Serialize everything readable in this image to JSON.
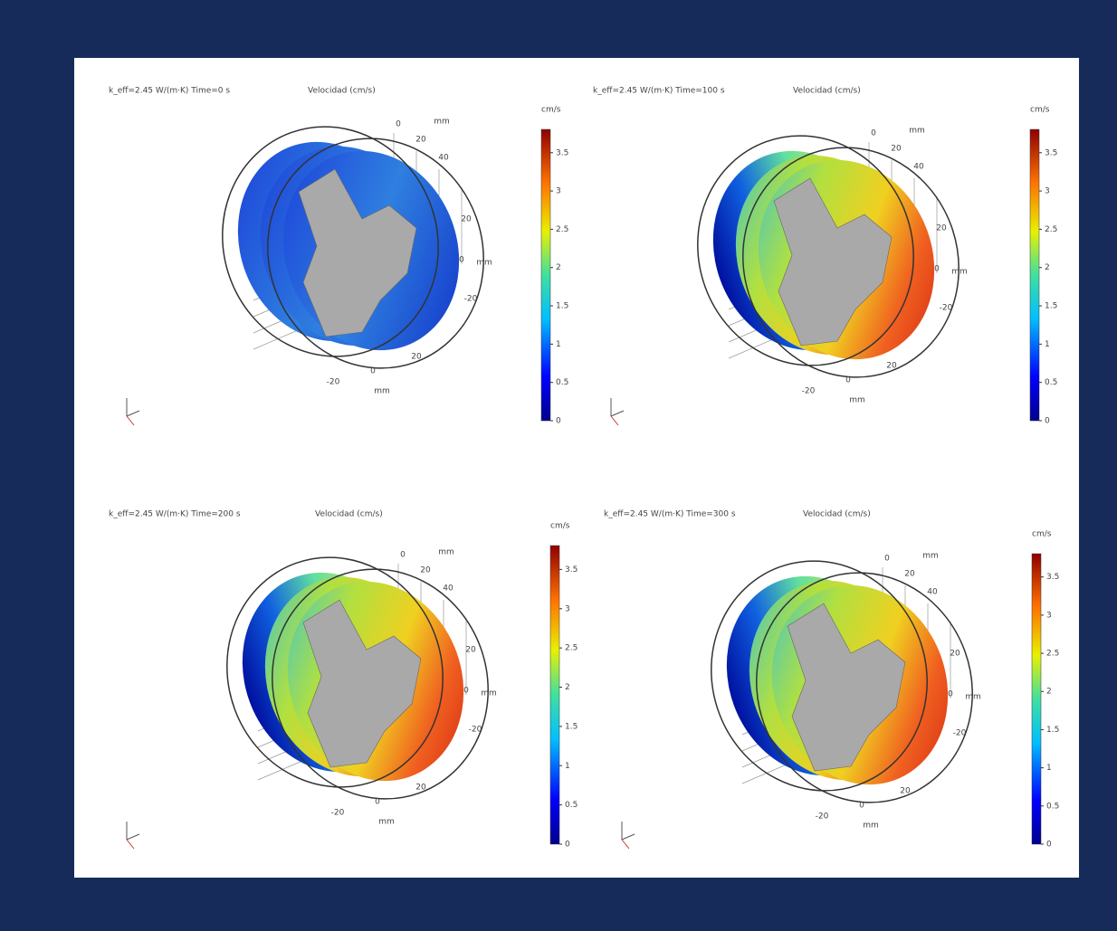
{
  "panels": [
    {
      "title": "k_eff=2.45 W/(m·K) Time=0 s",
      "quantity": "Velocidad (cm/s)",
      "unit": "cm/s",
      "colorbar_ticks": [
        0,
        0.5,
        1,
        1.5,
        2,
        2.5,
        3,
        3.5
      ],
      "axis_labels": [
        "0",
        "20",
        "40",
        "mm",
        "20",
        "0",
        "mm",
        "-20",
        "20",
        "0",
        "-20",
        "mm"
      ]
    },
    {
      "title": "k_eff=2.45 W/(m·K) Time=100 s",
      "quantity": "Velocidad (cm/s)",
      "unit": "cm/s",
      "colorbar_ticks": [
        0,
        0.5,
        1,
        1.5,
        2,
        2.5,
        3,
        3.5
      ],
      "axis_labels": [
        "0",
        "20",
        "40",
        "mm",
        "20",
        "0",
        "mm",
        "-20",
        "20",
        "0",
        "-20",
        "mm"
      ]
    },
    {
      "title": "k_eff=2.45 W/(m·K) Time=200 s",
      "quantity": "Velocidad (cm/s)",
      "unit": "cm/s",
      "colorbar_ticks": [
        0,
        0.5,
        1,
        1.5,
        2,
        2.5,
        3,
        3.5
      ],
      "axis_labels": [
        "0",
        "20",
        "40",
        "mm",
        "20",
        "0",
        "mm",
        "-20",
        "20",
        "0",
        "-20",
        "mm"
      ]
    },
    {
      "title": "k_eff=2.45 W/(m·K) Time=300 s",
      "quantity": "Velocidad (cm/s)",
      "unit": "cm/s",
      "colorbar_ticks": [
        0,
        0.5,
        1,
        1.5,
        2,
        2.5,
        3,
        3.5
      ],
      "axis_labels": [
        "0",
        "20",
        "40",
        "mm",
        "20",
        "0",
        "mm",
        "-20",
        "20",
        "0",
        "-20",
        "mm"
      ]
    }
  ]
}
